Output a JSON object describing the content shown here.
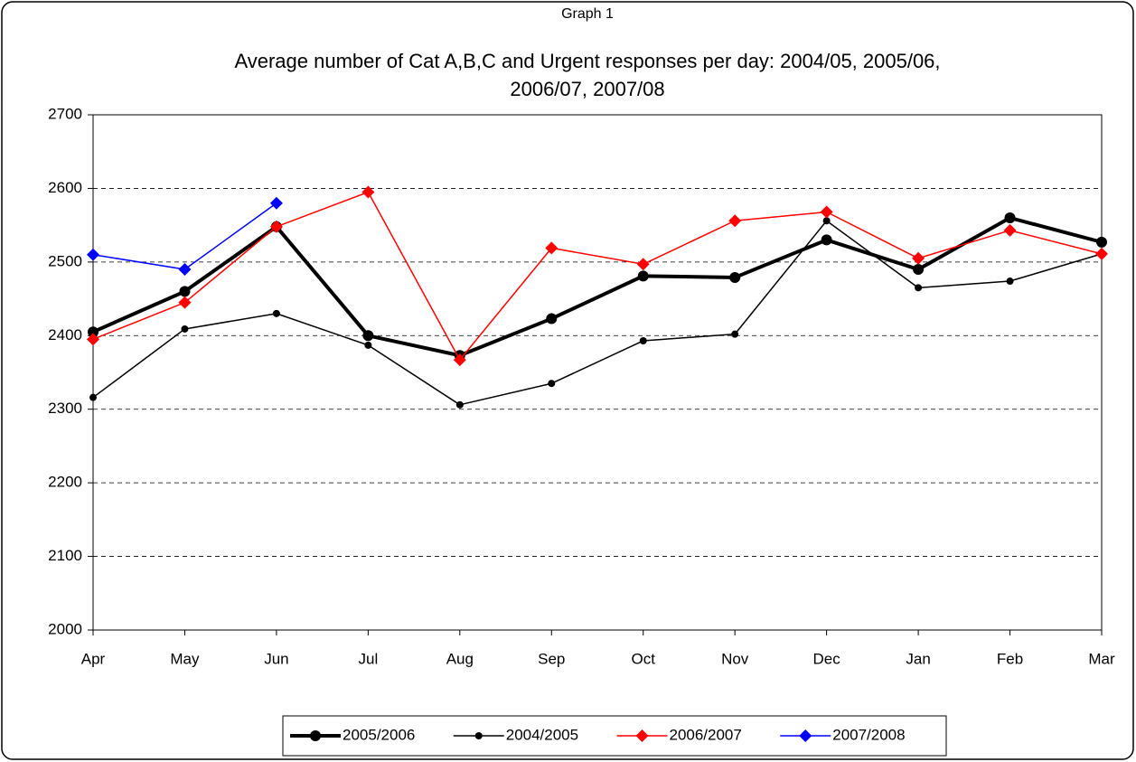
{
  "chart_data": {
    "type": "line",
    "title": "Graph 1",
    "subtitle": [
      "Average number of Cat A,B,C and Urgent responses per day: 2004/05,  2005/06,",
      "2006/07, 2007/08"
    ],
    "categories": [
      "Apr",
      "May",
      "Jun",
      "Jul",
      "Aug",
      "Sep",
      "Oct",
      "Nov",
      "Dec",
      "Jan",
      "Feb",
      "Mar"
    ],
    "series": [
      {
        "name": "2005/2006",
        "color": "#000000",
        "line_width": 4,
        "marker": "circle",
        "values": [
          2405,
          2460,
          2548,
          2400,
          2373,
          2423,
          2481,
          2479,
          2530,
          2490,
          2560,
          2527
        ]
      },
      {
        "name": "2004/2005",
        "color": "#000000",
        "line_width": 1.5,
        "marker": "circle",
        "values": [
          2316,
          2409,
          2430,
          2387,
          2306,
          2335,
          2393,
          2402,
          2556,
          2465,
          2474,
          2511
        ]
      },
      {
        "name": "2006/2007",
        "color": "#ff0000",
        "line_width": 1.5,
        "marker": "diamond",
        "values": [
          2395,
          2445,
          2548,
          2595,
          2367,
          2519,
          2497,
          2556,
          2568,
          2505,
          2543,
          2511
        ]
      },
      {
        "name": "2007/2008",
        "color": "#0000ff",
        "line_width": 1.5,
        "marker": "diamond",
        "values": [
          2510,
          2490,
          2580,
          null,
          null,
          null,
          null,
          null,
          null,
          null,
          null,
          null
        ]
      }
    ],
    "ylim": [
      2000,
      2700
    ],
    "yticks": [
      2000,
      2100,
      2200,
      2300,
      2400,
      2500,
      2600,
      2700
    ],
    "grid": true,
    "legend": "bottom"
  }
}
